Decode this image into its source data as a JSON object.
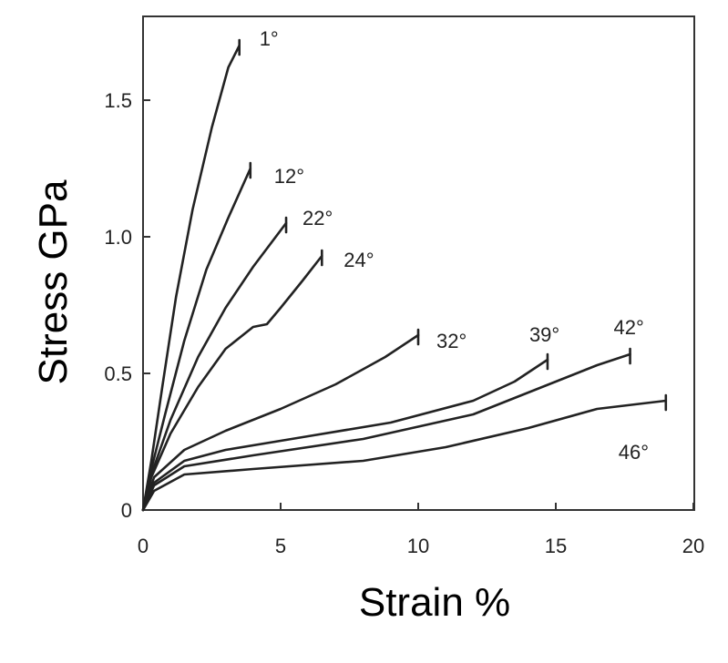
{
  "chart_data": {
    "type": "line",
    "title": "",
    "xlabel": "Strain %",
    "ylabel": "Stress GPa",
    "xlim": [
      0,
      20
    ],
    "ylim": [
      0,
      1.75
    ],
    "x_ticks": [
      0,
      5,
      10,
      15,
      20
    ],
    "x_tick_labels": [
      "0",
      "5",
      "10",
      "15",
      "20"
    ],
    "y_ticks": [
      0,
      0.5,
      1.0,
      1.5
    ],
    "y_tick_labels": [
      "0",
      "0.5",
      "1.0",
      "1.5"
    ],
    "grid": false,
    "line_color": "#222222",
    "series": [
      {
        "name": "1°",
        "points": [
          [
            0,
            0
          ],
          [
            0.3,
            0.18
          ],
          [
            0.7,
            0.45
          ],
          [
            1.2,
            0.78
          ],
          [
            1.8,
            1.1
          ],
          [
            2.5,
            1.4
          ],
          [
            3.1,
            1.62
          ],
          [
            3.5,
            1.7
          ]
        ]
      },
      {
        "name": "12°",
        "points": [
          [
            0,
            0
          ],
          [
            0.3,
            0.15
          ],
          [
            0.8,
            0.35
          ],
          [
            1.5,
            0.62
          ],
          [
            2.3,
            0.88
          ],
          [
            3.1,
            1.07
          ],
          [
            3.9,
            1.25
          ]
        ]
      },
      {
        "name": "22°",
        "points": [
          [
            0,
            0
          ],
          [
            0.3,
            0.13
          ],
          [
            1.0,
            0.33
          ],
          [
            2.0,
            0.56
          ],
          [
            3.0,
            0.74
          ],
          [
            4.0,
            0.89
          ],
          [
            5.2,
            1.05
          ]
        ]
      },
      {
        "name": "24°",
        "points": [
          [
            0,
            0
          ],
          [
            0.3,
            0.12
          ],
          [
            1.0,
            0.28
          ],
          [
            2.0,
            0.45
          ],
          [
            3.0,
            0.59
          ],
          [
            4.0,
            0.67
          ],
          [
            4.5,
            0.68
          ],
          [
            5.0,
            0.74
          ],
          [
            5.8,
            0.84
          ],
          [
            6.5,
            0.93
          ]
        ]
      },
      {
        "name": "32°",
        "points": [
          [
            0,
            0
          ],
          [
            0.4,
            0.12
          ],
          [
            1.5,
            0.22
          ],
          [
            3.0,
            0.29
          ],
          [
            5.0,
            0.37
          ],
          [
            7.0,
            0.46
          ],
          [
            8.8,
            0.56
          ],
          [
            10.0,
            0.64
          ]
        ]
      },
      {
        "name": "39°",
        "points": [
          [
            0,
            0
          ],
          [
            0.4,
            0.1
          ],
          [
            1.5,
            0.18
          ],
          [
            3.0,
            0.22
          ],
          [
            6.0,
            0.27
          ],
          [
            9.0,
            0.32
          ],
          [
            12.0,
            0.4
          ],
          [
            13.5,
            0.47
          ],
          [
            14.7,
            0.55
          ]
        ]
      },
      {
        "name": "42°",
        "points": [
          [
            0,
            0
          ],
          [
            0.4,
            0.09
          ],
          [
            1.5,
            0.16
          ],
          [
            4.0,
            0.2
          ],
          [
            8.0,
            0.26
          ],
          [
            12.0,
            0.35
          ],
          [
            15.0,
            0.47
          ],
          [
            16.5,
            0.53
          ],
          [
            17.7,
            0.57
          ]
        ]
      },
      {
        "name": "46°",
        "points": [
          [
            0,
            0
          ],
          [
            0.4,
            0.07
          ],
          [
            1.5,
            0.13
          ],
          [
            4.0,
            0.15
          ],
          [
            8.0,
            0.18
          ],
          [
            11.0,
            0.23
          ],
          [
            14.0,
            0.3
          ],
          [
            16.5,
            0.37
          ],
          [
            19.0,
            0.4
          ]
        ]
      }
    ]
  }
}
